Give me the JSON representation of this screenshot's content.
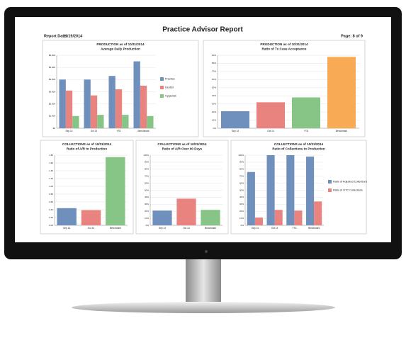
{
  "header": {
    "title": "Practice Advisor Report",
    "report_date_label": "Report Date:",
    "report_date": "11/19/2014",
    "page": "Page: 8 of 9"
  },
  "chart_data": [
    {
      "type": "bar",
      "title": "PRODUCTION as of 10/31/2014",
      "subtitle": "Average Daily Production",
      "categories": [
        "Sep 14",
        "Oct 14",
        "YTD",
        "Benchmark"
      ],
      "series": [
        {
          "name": "Practice",
          "color": "#6f8fbd",
          "values": [
            4000,
            4000,
            4300,
            5500
          ]
        },
        {
          "name": "Dentist",
          "color": "#e8837f",
          "values": [
            3100,
            2700,
            3200,
            3500
          ]
        },
        {
          "name": "Hygienist",
          "color": "#86c585",
          "values": [
            1000,
            1100,
            1100,
            1000
          ]
        }
      ],
      "ylim": [
        0,
        6000
      ],
      "yticks": [
        {
          "value": 0,
          "label": "$0"
        },
        {
          "value": 1000,
          "label": "$1,000"
        },
        {
          "value": 2000,
          "label": "$2,000"
        },
        {
          "value": 3000,
          "label": "$3,000"
        },
        {
          "value": 4000,
          "label": "$4,000"
        },
        {
          "value": 5000,
          "label": "$5,000"
        },
        {
          "value": 6000,
          "label": "$6,000"
        }
      ],
      "grid": true,
      "legend": "right"
    },
    {
      "type": "bar",
      "title": "PRODUCTION as of 10/31/2014",
      "subtitle": "Ratio of Tx Case Acceptance",
      "categories": [
        "Sep 14",
        "Oct 14",
        "YTD",
        "Benchmark"
      ],
      "values": [
        21,
        32,
        38,
        88
      ],
      "colors": [
        "#6f8fbd",
        "#e8837f",
        "#86c585",
        "#f8aa55"
      ],
      "ylim": [
        0,
        90
      ],
      "yticks": [
        {
          "value": 0,
          "label": "0%"
        },
        {
          "value": 10,
          "label": "10%"
        },
        {
          "value": 20,
          "label": "20%"
        },
        {
          "value": 30,
          "label": "30%"
        },
        {
          "value": 40,
          "label": "40%"
        },
        {
          "value": 50,
          "label": "50%"
        },
        {
          "value": 60,
          "label": "60%"
        },
        {
          "value": 70,
          "label": "70%"
        },
        {
          "value": 80,
          "label": "80%"
        },
        {
          "value": 90,
          "label": "90%"
        }
      ],
      "grid": true
    },
    {
      "type": "bar",
      "title": "COLLECTIONS as of 10/31/2014",
      "subtitle": "Ratio of A/R to Production",
      "categories": [
        "Sep 14",
        "Oct 14",
        "Benchmark"
      ],
      "values": [
        0.44,
        0.39,
        1.75
      ],
      "colors": [
        "#6f8fbd",
        "#e8837f",
        "#86c585"
      ],
      "ylim": [
        0,
        1.8
      ],
      "yticks": [
        {
          "value": 0,
          "label": "0.00"
        },
        {
          "value": 0.2,
          "label": "0.20"
        },
        {
          "value": 0.4,
          "label": "0.40"
        },
        {
          "value": 0.6,
          "label": "0.60"
        },
        {
          "value": 0.8,
          "label": "0.80"
        },
        {
          "value": 1,
          "label": "1.00"
        },
        {
          "value": 1.2,
          "label": "1.20"
        },
        {
          "value": 1.4,
          "label": "1.40"
        },
        {
          "value": 1.6,
          "label": "1.60"
        },
        {
          "value": 1.8,
          "label": "1.80"
        }
      ],
      "grid": true
    },
    {
      "type": "bar",
      "title": "COLLECTIONS as of 10/31/2014",
      "subtitle": "Ratio of A/R Over 90 Days",
      "categories": [
        "Sep 14",
        "Oct 14",
        "Benchmark"
      ],
      "values": [
        21,
        38,
        22
      ],
      "colors": [
        "#6f8fbd",
        "#e8837f",
        "#86c585"
      ],
      "ylim": [
        0,
        100
      ],
      "yticks": [
        {
          "value": 0,
          "label": "0%"
        },
        {
          "value": 10,
          "label": "10%"
        },
        {
          "value": 20,
          "label": "20%"
        },
        {
          "value": 30,
          "label": "30%"
        },
        {
          "value": 40,
          "label": "40%"
        },
        {
          "value": 50,
          "label": "50%"
        },
        {
          "value": 60,
          "label": "60%"
        },
        {
          "value": 70,
          "label": "70%"
        },
        {
          "value": 80,
          "label": "80%"
        },
        {
          "value": 90,
          "label": "90%"
        },
        {
          "value": 100,
          "label": "100%"
        }
      ],
      "grid": true
    },
    {
      "type": "bar",
      "title": "COLLECTIONS as of 10/31/2014",
      "subtitle": "Ratio of Collections to Production",
      "categories": [
        "Sep 14",
        "Oct 14",
        "YTD",
        "Benchmark"
      ],
      "series": [
        {
          "name": "Ratio of Adjusted Collections",
          "color": "#6f8fbd",
          "values": [
            76,
            100,
            100,
            98
          ]
        },
        {
          "name": "Ratio of OTC Collections",
          "color": "#e8837f",
          "values": [
            11,
            22,
            21,
            34
          ]
        }
      ],
      "ylim": [
        0,
        100
      ],
      "yticks": [
        {
          "value": 0,
          "label": "0%"
        },
        {
          "value": 10,
          "label": "10%"
        },
        {
          "value": 20,
          "label": "20%"
        },
        {
          "value": 30,
          "label": "30%"
        },
        {
          "value": 40,
          "label": "40%"
        },
        {
          "value": 50,
          "label": "50%"
        },
        {
          "value": 60,
          "label": "60%"
        },
        {
          "value": 70,
          "label": "70%"
        },
        {
          "value": 80,
          "label": "80%"
        },
        {
          "value": 90,
          "label": "90%"
        },
        {
          "value": 100,
          "label": "100%"
        }
      ],
      "grid": true,
      "legend": "right"
    }
  ]
}
